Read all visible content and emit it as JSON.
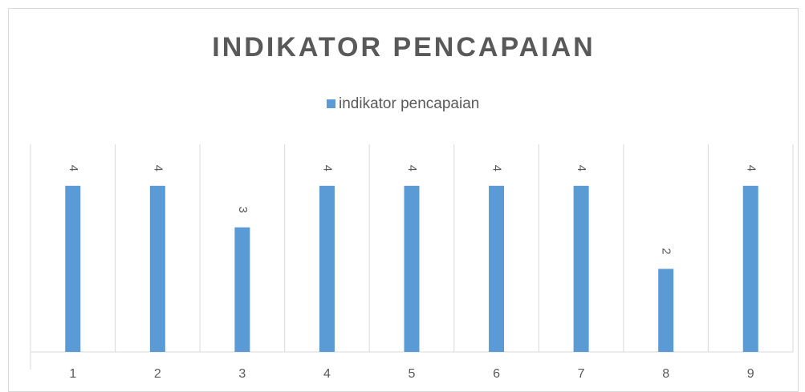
{
  "chart_data": {
    "type": "bar",
    "title": "INDIKATOR PENCAPAIAN",
    "categories": [
      "1",
      "2",
      "3",
      "4",
      "5",
      "6",
      "7",
      "8",
      "9"
    ],
    "series": [
      {
        "name": "indikator pencapaian",
        "color": "#5b9bd5",
        "values": [
          4,
          4,
          3,
          4,
          4,
          4,
          4,
          2,
          4
        ]
      }
    ],
    "ylim": [
      0,
      5
    ],
    "legend": "top"
  }
}
